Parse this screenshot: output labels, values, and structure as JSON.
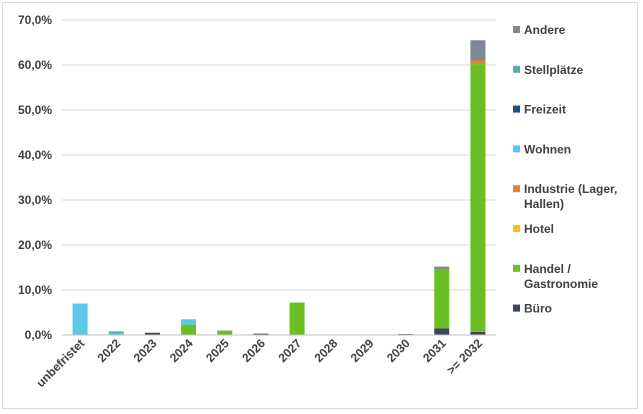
{
  "chart_data": {
    "type": "bar",
    "stacked": true,
    "categories": [
      "unbefristet",
      "2022",
      "2023",
      "2024",
      "2025",
      "2026",
      "2027",
      "2028",
      "2029",
      "2030",
      "2031",
      ">= 2032"
    ],
    "ylim": [
      0,
      70
    ],
    "yticks": [
      "0,0%",
      "10,0%",
      "20,0%",
      "30,0%",
      "40,0%",
      "50,0%",
      "60,0%",
      "70,0%"
    ],
    "grid": true,
    "legend_position": "right",
    "series": [
      {
        "name": "Büro",
        "color": "#3b4656",
        "values": [
          0.0,
          0.0,
          0.5,
          0.0,
          0.0,
          0.3,
          0.0,
          0.0,
          0.0,
          0.2,
          1.5,
          0.7
        ]
      },
      {
        "name": "Handel / Gastronomie",
        "color": "#6bbf23",
        "values": [
          0.0,
          0.0,
          0.0,
          2.3,
          1.0,
          0.0,
          7.2,
          0.0,
          0.0,
          0.0,
          13.0,
          59.5
        ]
      },
      {
        "name": "Hotel",
        "color": "#ffc000",
        "values": [
          0,
          0,
          0,
          0,
          0,
          0,
          0,
          0,
          0,
          0,
          0,
          0
        ]
      },
      {
        "name": "Industrie (Lager, Hallen)",
        "color": "#ed7d31",
        "values": [
          0.0,
          0.0,
          0.0,
          0.0,
          0.0,
          0.0,
          0.0,
          0.0,
          0.0,
          0.0,
          0.0,
          0.8
        ]
      },
      {
        "name": "Wohnen",
        "color": "#5bc8e8",
        "values": [
          7.0,
          0.3,
          0.0,
          1.2,
          0.0,
          0.0,
          0.0,
          0.0,
          0.0,
          0.0,
          0.0,
          0.0
        ]
      },
      {
        "name": "Freizeit",
        "color": "#1f4e79",
        "values": [
          0,
          0,
          0,
          0,
          0,
          0,
          0,
          0,
          0,
          0,
          0,
          0
        ]
      },
      {
        "name": "Stellplätze",
        "color": "#4bb3a8",
        "values": [
          0.0,
          0.5,
          0.0,
          0.0,
          0.0,
          0.0,
          0.0,
          0.0,
          0.0,
          0.0,
          0.0,
          0.0
        ]
      },
      {
        "name": "Andere",
        "color": "#7f8793",
        "values": [
          0.0,
          0.0,
          0.0,
          0.0,
          0.0,
          0.0,
          0.0,
          0.0,
          0.0,
          0.0,
          0.7,
          4.5
        ]
      }
    ],
    "legend_order": [
      "Andere",
      "Stellplätze",
      "Freizeit",
      "Wohnen",
      "Industrie (Lager, Hallen)",
      "Hotel",
      "Handel / Gastronomie",
      "Büro"
    ],
    "legend_lines": {
      "Andere": [
        "Andere"
      ],
      "Stellplätze": [
        "Stellplätze"
      ],
      "Freizeit": [
        "Freizeit"
      ],
      "Wohnen": [
        "Wohnen"
      ],
      "Industrie (Lager, Hallen)": [
        "Industrie (Lager,",
        "Hallen)"
      ],
      "Hotel": [
        "Hotel"
      ],
      "Handel / Gastronomie": [
        "Handel /",
        "Gastronomie"
      ],
      "Büro": [
        "Büro"
      ]
    }
  }
}
